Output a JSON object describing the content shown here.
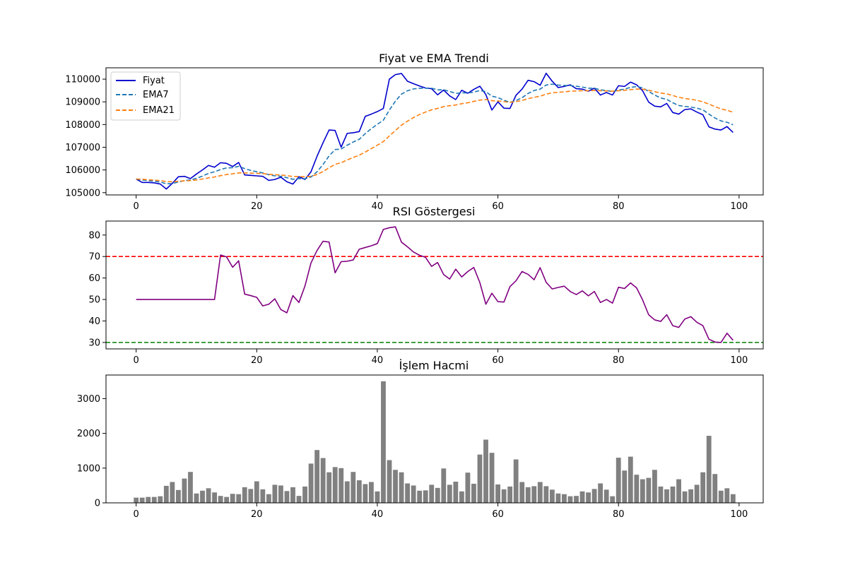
{
  "chart_data": [
    {
      "type": "line",
      "title": "Fiyat ve EMA Trendi",
      "xlim": [
        -5,
        104
      ],
      "ylim": [
        104900,
        110500
      ],
      "xticks": [
        0,
        20,
        40,
        60,
        80,
        100
      ],
      "yticks": [
        105000,
        106000,
        107000,
        108000,
        109000,
        110000
      ],
      "legend_position": "upper-left",
      "series": [
        {
          "name": "Fiyat",
          "color": "#0000cd",
          "style": "solid",
          "values": [
            105600,
            105450,
            105450,
            105430,
            105380,
            105160,
            105410,
            105700,
            105720,
            105620,
            105820,
            106000,
            106200,
            106120,
            106320,
            106290,
            106150,
            106330,
            105780,
            105760,
            105740,
            105720,
            105540,
            105580,
            105680,
            105480,
            105380,
            105700,
            105580,
            105920,
            106600,
            107200,
            107760,
            107740,
            107000,
            107610,
            107640,
            107690,
            108360,
            108460,
            108570,
            108710,
            110000,
            110200,
            110250,
            109910,
            109800,
            109700,
            109610,
            109580,
            109310,
            109520,
            109260,
            109100,
            109510,
            109380,
            109550,
            109690,
            109320,
            108640,
            109000,
            108720,
            108710,
            109290,
            109560,
            109950,
            109890,
            109730,
            110260,
            109910,
            109630,
            109680,
            109750,
            109580,
            109560,
            109470,
            109600,
            109300,
            109410,
            109300,
            109710,
            109680,
            109870,
            109750,
            109490,
            108990,
            108810,
            108780,
            108930,
            108530,
            108460,
            108660,
            108690,
            108550,
            108430,
            107900,
            107800,
            107760,
            107910,
            107650
          ]
        },
        {
          "name": "EMA7",
          "color": "#1f77b4",
          "style": "dashed",
          "values": [
            105600,
            105560,
            105530,
            105500,
            105470,
            105390,
            105400,
            105470,
            105530,
            105560,
            105630,
            105730,
            105850,
            105920,
            106020,
            106090,
            106100,
            106160,
            106060,
            105980,
            105920,
            105870,
            105790,
            105740,
            105720,
            105660,
            105590,
            105620,
            105610,
            105690,
            105920,
            106240,
            106620,
            106900,
            106920,
            107090,
            107230,
            107350,
            107600,
            107820,
            108010,
            108190,
            108640,
            109030,
            109340,
            109490,
            109570,
            109600,
            109600,
            109600,
            109530,
            109530,
            109460,
            109370,
            109400,
            109390,
            109430,
            109500,
            109450,
            109250,
            109190,
            109070,
            108980,
            109060,
            109180,
            109370,
            109500,
            109560,
            109740,
            109780,
            109740,
            109720,
            109720,
            109690,
            109650,
            109600,
            109600,
            109530,
            109500,
            109450,
            109520,
            109560,
            109640,
            109670,
            109620,
            109460,
            109300,
            109170,
            109110,
            108960,
            108840,
            108800,
            108770,
            108720,
            108650,
            108460,
            108290,
            108160,
            108100,
            107990
          ]
        },
        {
          "name": "EMA21",
          "color": "#ff7f0e",
          "style": "dashed",
          "values": [
            105600,
            105590,
            105570,
            105550,
            105530,
            105490,
            105480,
            105500,
            105520,
            105530,
            105560,
            105600,
            105650,
            105690,
            105750,
            105800,
            105830,
            105870,
            105870,
            105860,
            105850,
            105840,
            105810,
            105790,
            105780,
            105750,
            105710,
            105710,
            105700,
            105720,
            105800,
            105930,
            106100,
            106250,
            106320,
            106440,
            106550,
            106650,
            106790,
            106940,
            107090,
            107250,
            107500,
            107740,
            107970,
            108150,
            108310,
            108440,
            108550,
            108650,
            108710,
            108790,
            108830,
            108860,
            108920,
            108960,
            109020,
            109080,
            109100,
            109050,
            109040,
            109010,
            108980,
            109010,
            109060,
            109140,
            109200,
            109250,
            109340,
            109400,
            109420,
            109440,
            109470,
            109480,
            109490,
            109490,
            109500,
            109490,
            109480,
            109470,
            109490,
            109510,
            109540,
            109560,
            109560,
            109510,
            109450,
            109390,
            109350,
            109280,
            109200,
            109150,
            109110,
            109070,
            109000,
            108900,
            108790,
            108690,
            108630,
            108540
          ]
        }
      ]
    },
    {
      "type": "line",
      "title": "RSI Göstergesi",
      "xlim": [
        -5,
        104
      ],
      "ylim": [
        27,
        86.5
      ],
      "xticks": [
        0,
        20,
        40,
        60,
        80,
        100
      ],
      "yticks": [
        30,
        40,
        50,
        60,
        70,
        80
      ],
      "reference_lines": [
        {
          "y": 70,
          "color": "#ff0000",
          "style": "dashed"
        },
        {
          "y": 30,
          "color": "#008000",
          "style": "dashed"
        }
      ],
      "series": [
        {
          "color": "#800080",
          "style": "solid",
          "values": [
            50,
            50,
            50,
            50,
            50,
            50,
            50,
            50,
            50,
            50,
            50,
            50,
            50,
            50,
            70.7,
            69.8,
            65,
            68,
            52.5,
            51.8,
            51,
            47,
            47.8,
            50.3,
            45.3,
            43.8,
            51.8,
            48.6,
            56.3,
            67,
            72.8,
            77.1,
            76.7,
            62.4,
            67.6,
            67.8,
            68.4,
            73.4,
            74.2,
            75,
            76,
            82.6,
            83.4,
            83.8,
            76.7,
            74.5,
            72.1,
            70.6,
            69.6,
            65.4,
            67.2,
            61.6,
            59.5,
            64.1,
            60.5,
            63,
            64.9,
            57.9,
            47.8,
            52.9,
            49,
            48.8,
            56,
            58.7,
            63,
            61.7,
            59.2,
            64.8,
            58,
            54.9,
            55.6,
            56.2,
            53.7,
            52.3,
            54,
            51.7,
            53.7,
            48.6,
            50,
            48.3,
            55.7,
            55.1,
            57.7,
            55.4,
            49.8,
            42.9,
            40.5,
            39.8,
            42.9,
            37.8,
            37,
            40.9,
            42,
            39.4,
            37.8,
            31.5,
            30.2,
            30,
            34.3,
            31
          ]
        }
      ]
    },
    {
      "type": "bar",
      "title": "İşlem Hacmi",
      "xlim": [
        -5,
        104
      ],
      "ylim": [
        0,
        3680
      ],
      "xticks": [
        0,
        20,
        40,
        60,
        80,
        100
      ],
      "yticks": [
        0,
        1000,
        2000,
        3000
      ],
      "color": "#808080",
      "values": [
        150,
        150,
        170,
        170,
        190,
        490,
        600,
        370,
        700,
        890,
        270,
        350,
        420,
        300,
        200,
        170,
        260,
        250,
        450,
        400,
        620,
        390,
        250,
        520,
        500,
        340,
        450,
        200,
        470,
        1130,
        1520,
        1290,
        880,
        1030,
        1000,
        620,
        890,
        650,
        540,
        600,
        330,
        3500,
        1230,
        950,
        880,
        560,
        500,
        350,
        360,
        520,
        430,
        990,
        520,
        610,
        330,
        870,
        550,
        1390,
        1820,
        1440,
        530,
        390,
        470,
        1250,
        600,
        450,
        480,
        600,
        480,
        380,
        270,
        250,
        190,
        200,
        330,
        300,
        400,
        560,
        380,
        190,
        1300,
        930,
        1330,
        810,
        680,
        720,
        950,
        470,
        390,
        470,
        680,
        330,
        390,
        520,
        880,
        1930,
        830,
        350,
        420,
        250
      ]
    }
  ]
}
